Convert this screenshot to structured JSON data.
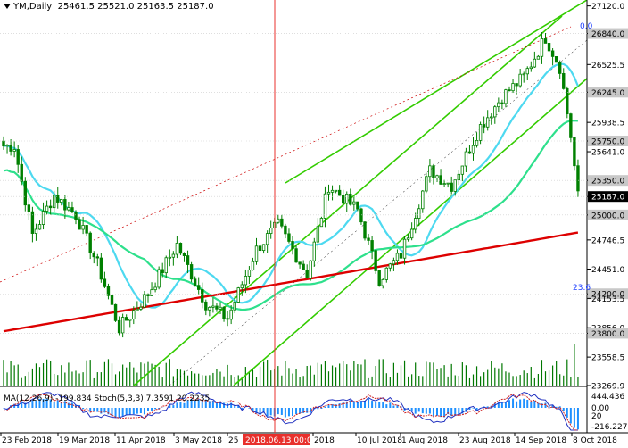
{
  "header": {
    "symbol": "YM,Daily",
    "open": "25461.5",
    "high": "25521.0",
    "low": "25163.5",
    "close": "25187.0"
  },
  "fib_labels": {
    "top": "0.0",
    "bottom": "23.6"
  },
  "highlight_date": "2018.06.13 00:00",
  "indicator_label": "MA(12,26,9) -199.834 Stoch(5,3,3) 7.3591 20.2235",
  "colors": {
    "candles": "#008000",
    "channel": "#33cc00",
    "ma_cyan": "#4dd9f0",
    "ma_green": "#2ee08c",
    "ma_red": "#dd0000",
    "volume": "#007700",
    "price_box": "#000000",
    "date_box": "#e8302c"
  },
  "chart_data": {
    "type": "candlestick",
    "price_axis": {
      "range": [
        23269.9,
        27180.0
      ],
      "ticks": [
        "27120.0",
        "26840.0",
        "26525.5",
        "26245.0",
        "25938.5",
        "25750.0",
        "25641.0",
        "25350.0",
        "25187.0",
        "25000.0",
        "24746.5",
        "24451.0",
        "24200.0",
        "24153.5",
        "23856.0",
        "23800.0",
        "23558.5",
        "23269.9"
      ],
      "boxed": [
        "26840.0",
        "26245.0",
        "25750.0",
        "25350.0",
        "25187.0",
        "25000.0",
        "24200.0",
        "23800.0"
      ]
    },
    "date_ticks": [
      "23 Feb 2018",
      "19 Mar 2018",
      "11 Apr 2018",
      "3 May 2018",
      "25",
      "2018.06.13 00:00",
      "2018",
      "10 Jul 2018",
      "1 Aug 2018",
      "23 Aug 2018",
      "14 Sep 2018",
      "8 Oct 2018"
    ],
    "indicator_axis": {
      "ticks": [
        "444.436",
        "0.00",
        "-216.227"
      ],
      "stoch_level": "20"
    },
    "moving_averages": [
      "cyan",
      "green",
      "red"
    ],
    "channel_lines": 4,
    "grid": false
  }
}
